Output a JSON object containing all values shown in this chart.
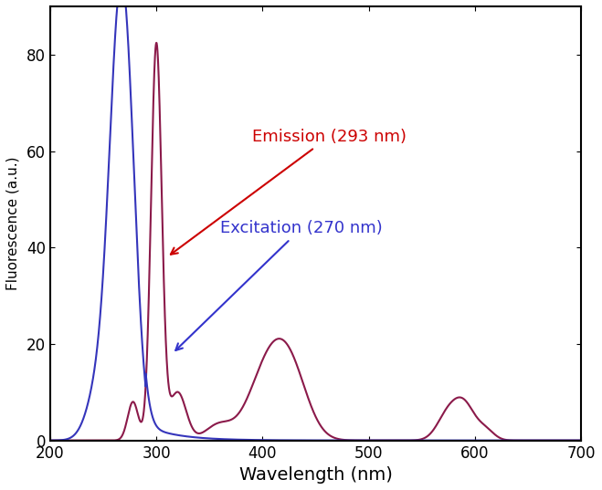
{
  "title": "",
  "xlabel": "Wavelength (nm)",
  "ylabel": "Fluorescence (a.u.)",
  "xlim": [
    200,
    700
  ],
  "ylim": [
    0,
    90
  ],
  "yticks": [
    0,
    20,
    40,
    60,
    80
  ],
  "xticks": [
    200,
    300,
    400,
    500,
    600,
    700
  ],
  "emission_color": "#8B1A4A",
  "excitation_color": "#3535BB",
  "annotation_emission_color": "#CC0000",
  "annotation_excitation_color": "#3333CC",
  "emission_label": "Emission (293 nm)",
  "excitation_label": "Excitation (270 nm)",
  "background_color": "#ffffff",
  "figsize": [
    6.59,
    5.37
  ],
  "dpi": 100
}
